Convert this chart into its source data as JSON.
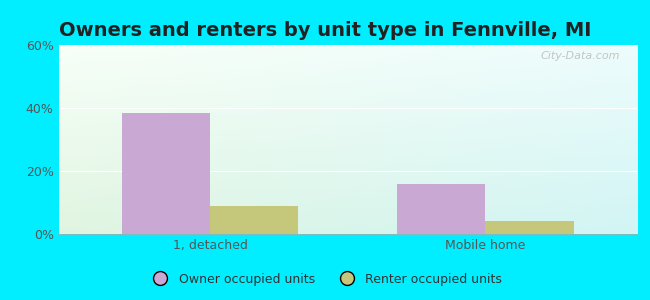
{
  "title": "Owners and renters by unit type in Fennville, MI",
  "categories": [
    "1, detached",
    "Mobile home"
  ],
  "owner_values": [
    38.5,
    16.0
  ],
  "renter_values": [
    9.0,
    4.0
  ],
  "owner_color": "#c9a8d4",
  "renter_color": "#c5c87a",
  "ylim": [
    0,
    60
  ],
  "yticks": [
    0,
    20,
    40,
    60
  ],
  "ytick_labels": [
    "0%",
    "20%",
    "40%",
    "60%"
  ],
  "bar_width": 0.32,
  "watermark": "City-Data.com",
  "legend_labels": [
    "Owner occupied units",
    "Renter occupied units"
  ],
  "title_fontsize": 14,
  "outer_bg": "#00eeff",
  "title_color": "#222222"
}
